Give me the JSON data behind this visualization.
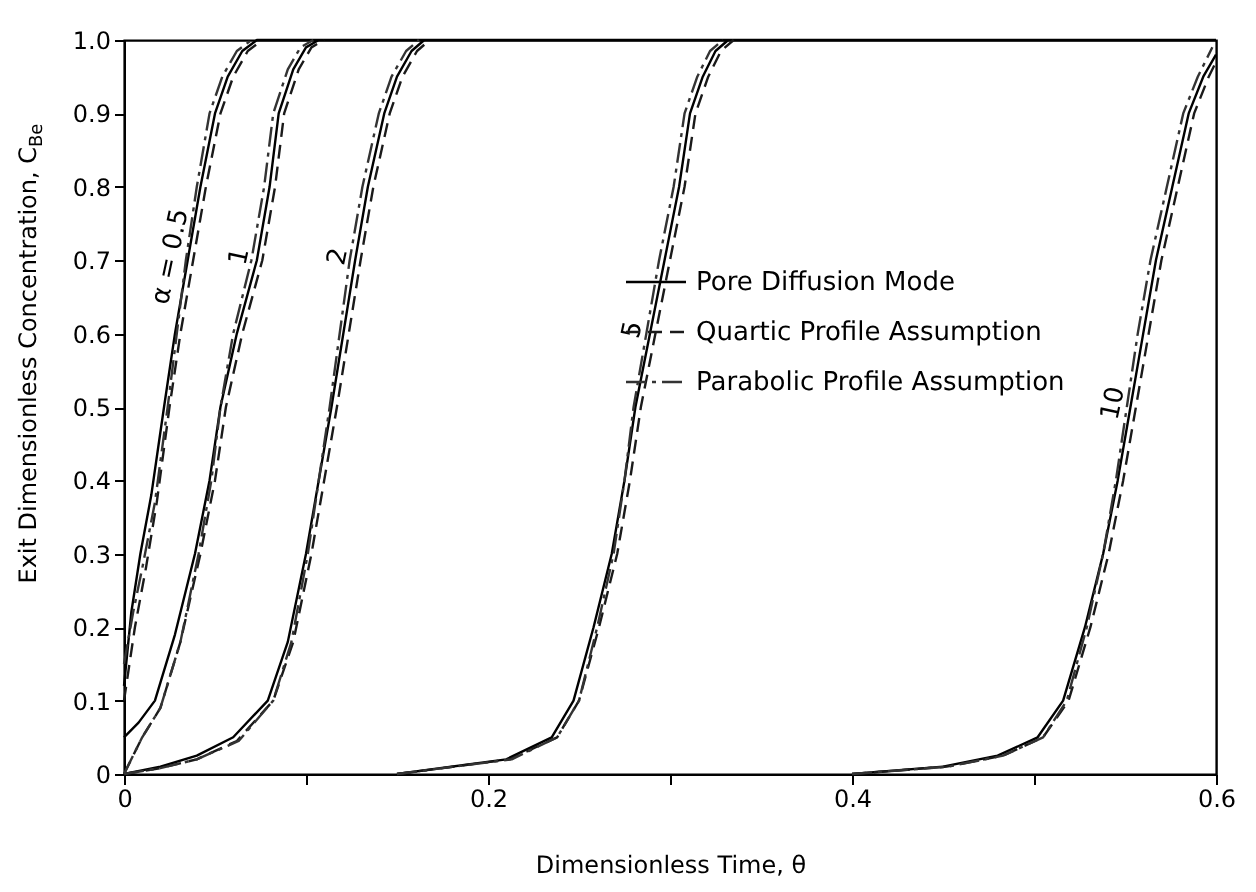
{
  "chart_data": {
    "type": "line",
    "xlabel": "Dimensionless Time, θ",
    "ylabel": "Exit Dimensionless Concentration, C$_{Be}$",
    "xlim": [
      0,
      0.6
    ],
    "ylim": [
      0,
      1.0
    ],
    "xticks": [
      0,
      {
        "value": 0.1,
        "label": null
      },
      0.2,
      {
        "value": 0.3,
        "label": null
      },
      0.4,
      {
        "value": 0.5,
        "label": null
      },
      0.6
    ],
    "yticks": [
      0,
      0.1,
      0.2,
      0.3,
      0.4,
      0.5,
      0.6,
      0.7,
      0.8,
      0.9,
      {
        "value": 1.0,
        "label": "1.0"
      }
    ],
    "grid": false,
    "legend": "right",
    "marker": "none",
    "series": [
      {
        "name": "Pore Diffusion Mode",
        "color": "#000000",
        "line_style": "solid",
        "x": [
          0,
          0.004,
          0.009,
          0.015,
          0.022,
          0.028,
          0.035,
          0.042,
          0.05,
          0.057,
          0.065,
          0.073,
          0.6,
          null,
          0,
          0.008,
          0.017,
          0.028,
          0.039,
          0.047,
          0.053,
          0.062,
          0.073,
          0.08,
          0.085,
          0.093,
          0.1,
          0.107,
          null,
          0,
          0.02,
          0.04,
          0.06,
          0.079,
          0.09,
          0.1,
          0.107,
          0.114,
          0.127,
          0.134,
          0.143,
          0.15,
          0.158,
          0.165,
          null,
          0.15,
          0.21,
          0.235,
          0.247,
          0.258,
          0.268,
          0.275,
          0.281,
          0.289,
          0.297,
          0.305,
          0.311,
          0.318,
          0.325,
          0.332,
          null,
          0.4,
          0.45,
          0.48,
          0.502,
          0.516,
          0.528,
          0.538,
          0.546,
          0.553,
          0.56,
          0.567,
          0.576,
          0.585,
          0.593,
          0.6
        ],
        "values": [
          0.12,
          0.22,
          0.3,
          0.38,
          0.5,
          0.6,
          0.7,
          0.8,
          0.9,
          0.95,
          0.985,
          1.0,
          1.0,
          null,
          0.05,
          0.07,
          0.1,
          0.19,
          0.3,
          0.4,
          0.5,
          0.6,
          0.7,
          0.8,
          0.9,
          0.96,
          0.99,
          1.0,
          null,
          0,
          0.01,
          0.025,
          0.05,
          0.1,
          0.18,
          0.3,
          0.4,
          0.5,
          0.7,
          0.8,
          0.9,
          0.95,
          0.985,
          1.0,
          null,
          0,
          0.02,
          0.05,
          0.1,
          0.2,
          0.3,
          0.4,
          0.5,
          0.6,
          0.7,
          0.8,
          0.9,
          0.95,
          0.985,
          1.0,
          null,
          0,
          0.01,
          0.025,
          0.05,
          0.1,
          0.2,
          0.3,
          0.4,
          0.5,
          0.6,
          0.7,
          0.8,
          0.9,
          0.95,
          0.98
        ]
      },
      {
        "name": "Quartic Profile Assumption",
        "color": "#1a1a1a",
        "line_style": "dashed",
        "x": [
          0,
          0.006,
          0.012,
          0.018,
          0.025,
          0.031,
          0.038,
          0.045,
          0.053,
          0.06,
          0.068,
          0.076,
          null,
          0,
          0.01,
          0.02,
          0.031,
          0.042,
          0.05,
          0.056,
          0.065,
          0.076,
          0.083,
          0.088,
          0.096,
          0.103,
          0.11,
          null,
          0,
          0.02,
          0.04,
          0.062,
          0.082,
          0.093,
          0.103,
          0.11,
          0.117,
          0.13,
          0.137,
          0.146,
          0.153,
          0.161,
          0.168,
          null,
          0.15,
          0.212,
          0.238,
          0.25,
          0.261,
          0.271,
          0.278,
          0.284,
          0.292,
          0.3,
          0.308,
          0.314,
          0.321,
          0.328,
          0.335,
          null,
          0.4,
          0.452,
          0.483,
          0.505,
          0.519,
          0.531,
          0.541,
          0.549,
          0.556,
          0.563,
          0.57,
          0.579,
          0.588,
          0.596,
          0.6
        ],
        "values": [
          0.1,
          0.2,
          0.28,
          0.37,
          0.5,
          0.6,
          0.7,
          0.8,
          0.9,
          0.95,
          0.985,
          1.0,
          null,
          0,
          0.05,
          0.09,
          0.18,
          0.3,
          0.4,
          0.5,
          0.6,
          0.7,
          0.8,
          0.9,
          0.96,
          0.99,
          1.0,
          null,
          0,
          0.008,
          0.02,
          0.045,
          0.1,
          0.18,
          0.3,
          0.4,
          0.5,
          0.7,
          0.8,
          0.9,
          0.95,
          0.985,
          1.0,
          null,
          0,
          0.02,
          0.05,
          0.1,
          0.2,
          0.3,
          0.4,
          0.5,
          0.6,
          0.7,
          0.8,
          0.9,
          0.95,
          0.985,
          1.0,
          null,
          0,
          0.01,
          0.025,
          0.05,
          0.1,
          0.2,
          0.3,
          0.4,
          0.5,
          0.6,
          0.7,
          0.8,
          0.9,
          0.95,
          0.97
        ]
      },
      {
        "name": "Parabolic Profile Assumption",
        "color": "#333333",
        "line_style": "dashdot",
        "x": [
          0,
          0.005,
          0.01,
          0.017,
          0.024,
          0.029,
          0.034,
          0.04,
          0.047,
          0.054,
          0.062,
          0.07,
          null,
          0,
          0.01,
          0.02,
          0.031,
          0.041,
          0.048,
          0.053,
          0.06,
          0.07,
          0.077,
          0.082,
          0.09,
          0.097,
          0.104,
          null,
          0,
          0.02,
          0.04,
          0.063,
          0.082,
          0.092,
          0.101,
          0.107,
          0.113,
          0.124,
          0.131,
          0.14,
          0.147,
          0.155,
          0.162,
          null,
          0.15,
          0.213,
          0.238,
          0.25,
          0.26,
          0.269,
          0.275,
          0.28,
          0.287,
          0.294,
          0.302,
          0.308,
          0.315,
          0.322,
          0.329,
          null,
          0.4,
          0.453,
          0.483,
          0.505,
          0.518,
          0.529,
          0.538,
          0.545,
          0.551,
          0.557,
          0.564,
          0.573,
          0.582,
          0.59,
          0.598
        ],
        "values": [
          0.15,
          0.22,
          0.28,
          0.37,
          0.5,
          0.6,
          0.7,
          0.8,
          0.9,
          0.95,
          0.985,
          1.0,
          null,
          0,
          0.05,
          0.09,
          0.18,
          0.3,
          0.4,
          0.5,
          0.6,
          0.7,
          0.8,
          0.9,
          0.96,
          0.99,
          1.0,
          null,
          0,
          0.008,
          0.02,
          0.045,
          0.1,
          0.18,
          0.3,
          0.4,
          0.5,
          0.7,
          0.8,
          0.9,
          0.95,
          0.985,
          1.0,
          null,
          0,
          0.02,
          0.05,
          0.1,
          0.2,
          0.3,
          0.4,
          0.5,
          0.6,
          0.7,
          0.8,
          0.9,
          0.95,
          0.985,
          1.0,
          null,
          0,
          0.01,
          0.025,
          0.05,
          0.1,
          0.2,
          0.3,
          0.4,
          0.5,
          0.6,
          0.7,
          0.8,
          0.9,
          0.95,
          0.99
        ]
      }
    ],
    "annotations": [
      {
        "text": "α = 0.5",
        "x": 0.035,
        "y": 0.7
      },
      {
        "text": "1",
        "x": 0.073,
        "y": 0.7
      },
      {
        "text": "2",
        "x": 0.127,
        "y": 0.7
      },
      {
        "text": "5",
        "x": 0.289,
        "y": 0.6
      },
      {
        "text": "10",
        "x": 0.553,
        "y": 0.5
      }
    ]
  }
}
